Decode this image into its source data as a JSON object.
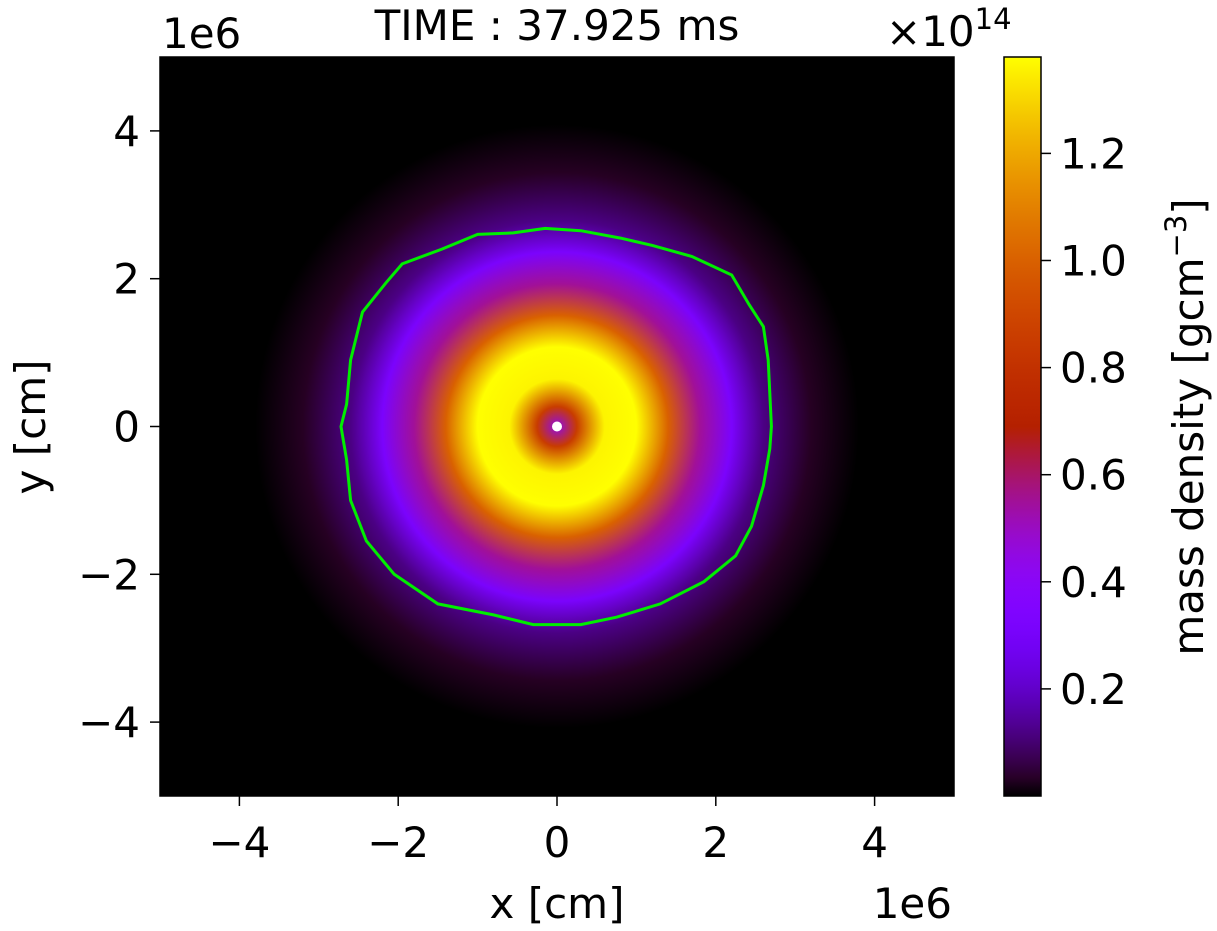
{
  "chart_data": {
    "type": "heatmap",
    "title": "TIME : 37.925 ms",
    "xlabel": "x [cm]",
    "ylabel": "y [cm]",
    "x_offset_label": "1e6",
    "y_offset_label": "1e6",
    "xlim": [
      -5,
      5
    ],
    "ylim": [
      -5,
      5
    ],
    "xticks": [
      {
        "value": -4,
        "label": "−4"
      },
      {
        "value": -2,
        "label": "−2"
      },
      {
        "value": 0,
        "label": "0"
      },
      {
        "value": 2,
        "label": "2"
      },
      {
        "value": 4,
        "label": "4"
      }
    ],
    "yticks": [
      {
        "value": 4,
        "label": "4"
      },
      {
        "value": 2,
        "label": "2"
      },
      {
        "value": 0,
        "label": "0"
      },
      {
        "value": -2,
        "label": "−2"
      },
      {
        "value": -4,
        "label": "−4"
      }
    ],
    "grid": false,
    "colormap": "gnuplot",
    "colorbar": {
      "label": "mass density [gcm",
      "label_exponent": "−3",
      "label_close": "]",
      "scale_prefix": "×10",
      "scale_exponent": "14",
      "range": [
        0.0,
        1.38
      ],
      "ticks": [
        {
          "value": 0.2,
          "label": "0.2"
        },
        {
          "value": 0.4,
          "label": "0.4"
        },
        {
          "value": 0.6,
          "label": "0.6"
        },
        {
          "value": 0.8,
          "label": "0.8"
        },
        {
          "value": 1.0,
          "label": "1.0"
        },
        {
          "value": 1.2,
          "label": "1.2"
        }
      ]
    },
    "density_profile": {
      "center": [
        0,
        0
      ],
      "radii": [
        0,
        0.25,
        0.6,
        1.0,
        1.4,
        1.8,
        2.2,
        2.6,
        3.2,
        3.8
      ],
      "values": [
        0.45,
        0.85,
        1.36,
        1.38,
        1.0,
        0.55,
        0.32,
        0.12,
        0.03,
        0.0
      ]
    },
    "contour": {
      "color": "#00ee00",
      "points": [
        [
          2.7,
          0
        ],
        [
          2.68,
          0.45
        ],
        [
          2.66,
          0.9
        ],
        [
          2.6,
          1.35
        ],
        [
          2.42,
          1.65
        ],
        [
          2.2,
          2.05
        ],
        [
          1.7,
          2.3
        ],
        [
          1.2,
          2.45
        ],
        [
          0.8,
          2.55
        ],
        [
          0.3,
          2.65
        ],
        [
          -0.15,
          2.68
        ],
        [
          -0.55,
          2.62
        ],
        [
          -1.0,
          2.6
        ],
        [
          -1.45,
          2.4
        ],
        [
          -1.95,
          2.2
        ],
        [
          -2.15,
          1.95
        ],
        [
          -2.45,
          1.55
        ],
        [
          -2.6,
          0.9
        ],
        [
          -2.65,
          0.3
        ],
        [
          -2.72,
          0
        ],
        [
          -2.65,
          -0.45
        ],
        [
          -2.6,
          -1.0
        ],
        [
          -2.4,
          -1.55
        ],
        [
          -2.05,
          -2.0
        ],
        [
          -1.5,
          -2.4
        ],
        [
          -0.8,
          -2.55
        ],
        [
          -0.3,
          -2.68
        ],
        [
          0.3,
          -2.68
        ],
        [
          0.75,
          -2.58
        ],
        [
          1.3,
          -2.4
        ],
        [
          1.85,
          -2.1
        ],
        [
          2.25,
          -1.75
        ],
        [
          2.45,
          -1.35
        ],
        [
          2.6,
          -0.8
        ],
        [
          2.68,
          -0.3
        ]
      ]
    },
    "center_marker": {
      "x": 0,
      "y": 0,
      "color": "#ffffff"
    }
  }
}
